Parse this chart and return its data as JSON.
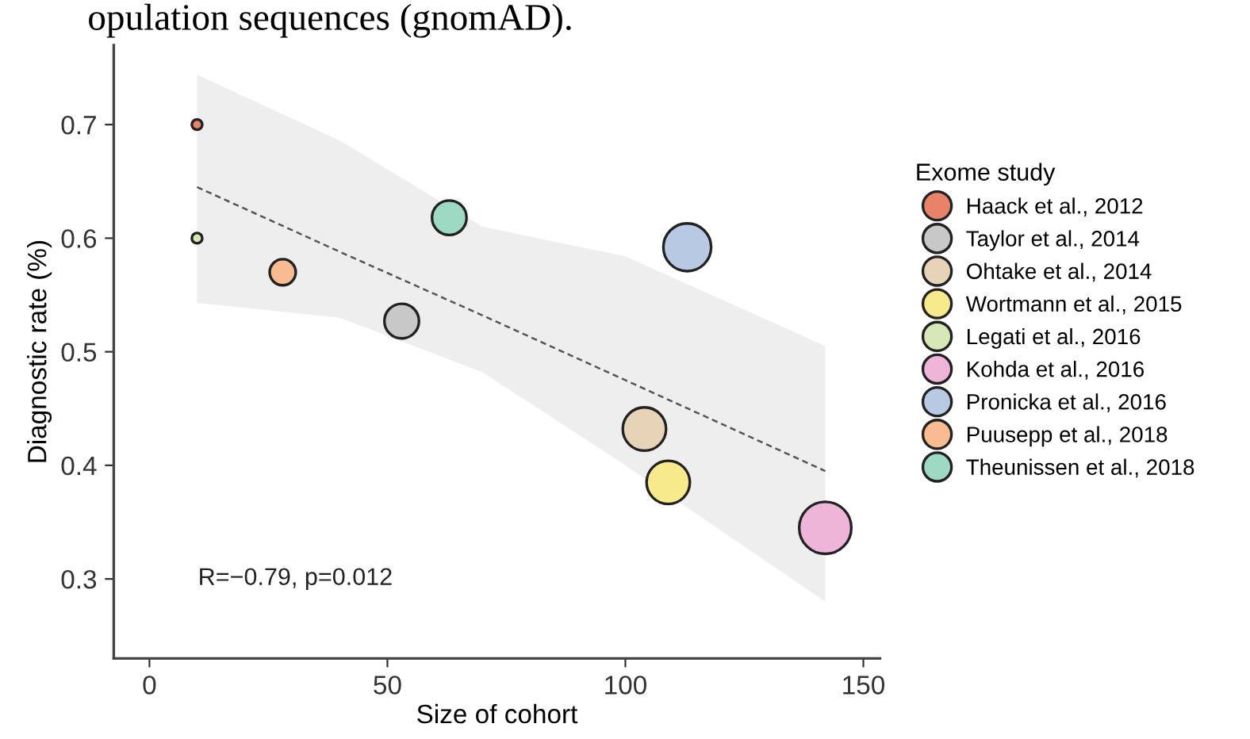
{
  "chart_data": {
    "type": "bubble",
    "xlabel": "Size of cohort",
    "ylabel": "Diagnostic rate (%)",
    "legend_title": "Exome study",
    "legend": "right",
    "grid": false,
    "marker": "circle",
    "xlim": [
      -7.5,
      153.5
    ],
    "xticks": [
      0,
      50,
      100,
      150
    ],
    "ylim": [
      0.23,
      0.77
    ],
    "yticks": [
      0.3,
      0.4,
      0.5,
      0.6,
      0.7
    ],
    "annotations": [
      "opulation sequences (gnomAD).",
      "R=−0.79, p=0.012"
    ],
    "series": [
      {
        "name": "Haack et al., 2012",
        "color": "#e8836a",
        "x": [
          10
        ],
        "values": [
          0.7
        ],
        "sizes": [
          0.04
        ]
      },
      {
        "name": "Taylor et al., 2014",
        "color": "#c8c8c8",
        "x": [
          53
        ],
        "values": [
          0.527
        ],
        "sizes": [
          0.44
        ]
      },
      {
        "name": "Ohtake et al., 2014",
        "color": "#e6d3b8",
        "x": [
          104
        ],
        "values": [
          0.432
        ],
        "sizes": [
          0.69
        ]
      },
      {
        "name": "Wortmann et al., 2015",
        "color": "#f7ea8c",
        "x": [
          109
        ],
        "values": [
          0.385
        ],
        "sizes": [
          0.69
        ]
      },
      {
        "name": "Legati et al., 2016",
        "color": "#d6e8b8",
        "x": [
          10
        ],
        "values": [
          0.6
        ],
        "sizes": [
          0.04
        ]
      },
      {
        "name": "Kohda et al., 2016",
        "color": "#eeb5d9",
        "x": [
          142
        ],
        "values": [
          0.345
        ],
        "sizes": [
          1
        ]
      },
      {
        "name": "Pronicka et al., 2016",
        "color": "#b7c9e3",
        "x": [
          113
        ],
        "values": [
          0.592
        ],
        "sizes": [
          0.84
        ]
      },
      {
        "name": "Puusepp et al., 2018",
        "color": "#f9bb90",
        "x": [
          28
        ],
        "values": [
          0.57
        ],
        "sizes": [
          0.25
        ]
      },
      {
        "name": "Theunissen et al., 2018",
        "color": "#9ed9c3",
        "x": [
          63
        ],
        "values": [
          0.618
        ],
        "sizes": [
          0.44
        ]
      },
      {
        "type": "line",
        "color": "#555555",
        "line_style": "dashed",
        "marker": "none",
        "x": [
          10,
          40,
          70,
          100,
          142
        ],
        "values": [
          0.645,
          0.588,
          0.532,
          0.475,
          0.395
        ],
        "lower": [
          0.543,
          0.53,
          0.482,
          0.4,
          0.28
        ],
        "upper": [
          0.744,
          0.686,
          0.61,
          0.584,
          0.505
        ]
      }
    ]
  }
}
